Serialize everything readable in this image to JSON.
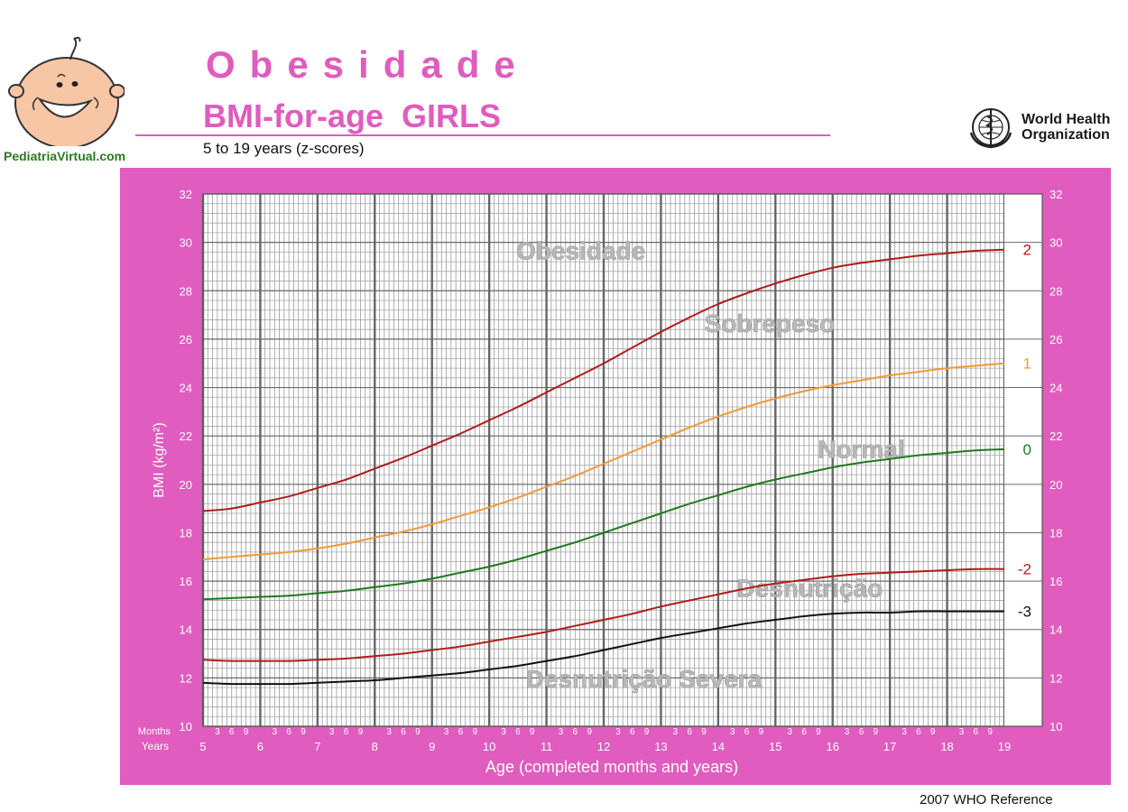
{
  "header": {
    "site": "PediatriaVirtual.com",
    "title": "Obesidade",
    "subtitle": "BMI-for-age  GIRLS",
    "age_range": "5 to 19 years (z-scores)",
    "organization_line1": "World Health",
    "organization_line2": "Organization"
  },
  "footer": {
    "reference": "2007 WHO Reference"
  },
  "colors": {
    "frame": "#e05cbe",
    "title": "#e05cbe",
    "sd2": "#b01c1c",
    "sd1": "#f09a3a",
    "median": "#1e7a1e",
    "sdneg2": "#b01c1c",
    "sdneg3": "#111111",
    "zone_label": "#b8b8b8"
  },
  "chart_data": {
    "type": "line",
    "xlabel": "Age (completed months and years)",
    "ylabel": "BMI (kg/m²)",
    "x_row_labels": {
      "months": "Months",
      "years": "Years"
    },
    "month_ticks": [
      "3",
      "6",
      "9"
    ],
    "xlim": [
      5,
      19
    ],
    "ylim": [
      10,
      32
    ],
    "x_ticks": [
      5,
      6,
      7,
      8,
      9,
      10,
      11,
      12,
      13,
      14,
      15,
      16,
      17,
      18,
      19
    ],
    "y_ticks": [
      10,
      12,
      14,
      16,
      18,
      20,
      22,
      24,
      26,
      28,
      30,
      32
    ],
    "grid": true,
    "x": [
      5,
      5.5,
      6,
      6.5,
      7,
      7.5,
      8,
      8.5,
      9,
      9.5,
      10,
      10.5,
      11,
      11.5,
      12,
      12.5,
      13,
      13.5,
      14,
      14.5,
      15,
      15.5,
      16,
      16.5,
      17,
      17.5,
      18,
      18.5,
      19
    ],
    "series": [
      {
        "name": "2",
        "key": "sd2",
        "values": [
          18.9,
          19.0,
          19.25,
          19.5,
          19.85,
          20.2,
          20.65,
          21.1,
          21.6,
          22.1,
          22.65,
          23.2,
          23.8,
          24.4,
          25.0,
          25.65,
          26.3,
          26.9,
          27.45,
          27.9,
          28.3,
          28.65,
          28.95,
          29.15,
          29.3,
          29.45,
          29.55,
          29.65,
          29.7
        ]
      },
      {
        "name": "1",
        "key": "sd1",
        "values": [
          16.9,
          17.0,
          17.1,
          17.2,
          17.35,
          17.55,
          17.8,
          18.05,
          18.35,
          18.7,
          19.05,
          19.45,
          19.9,
          20.35,
          20.85,
          21.35,
          21.85,
          22.35,
          22.8,
          23.2,
          23.55,
          23.85,
          24.1,
          24.3,
          24.5,
          24.65,
          24.8,
          24.9,
          25.0
        ]
      },
      {
        "name": "0",
        "key": "median",
        "values": [
          15.25,
          15.3,
          15.35,
          15.4,
          15.5,
          15.6,
          15.75,
          15.9,
          16.1,
          16.35,
          16.6,
          16.9,
          17.25,
          17.6,
          18.0,
          18.4,
          18.8,
          19.2,
          19.55,
          19.9,
          20.2,
          20.45,
          20.7,
          20.9,
          21.05,
          21.2,
          21.3,
          21.4,
          21.45
        ]
      },
      {
        "name": "-2",
        "key": "sdneg2",
        "values": [
          12.75,
          12.7,
          12.7,
          12.7,
          12.75,
          12.8,
          12.9,
          13.0,
          13.15,
          13.3,
          13.5,
          13.7,
          13.9,
          14.15,
          14.4,
          14.65,
          14.95,
          15.2,
          15.45,
          15.7,
          15.9,
          16.05,
          16.2,
          16.3,
          16.35,
          16.4,
          16.45,
          16.5,
          16.5
        ]
      },
      {
        "name": "-3",
        "key": "sdneg3",
        "values": [
          11.8,
          11.75,
          11.75,
          11.75,
          11.8,
          11.85,
          11.9,
          12.0,
          12.1,
          12.2,
          12.35,
          12.5,
          12.7,
          12.9,
          13.15,
          13.4,
          13.65,
          13.85,
          14.05,
          14.25,
          14.4,
          14.55,
          14.65,
          14.7,
          14.7,
          14.75,
          14.75,
          14.75,
          14.75
        ]
      }
    ],
    "zones": [
      {
        "label": "Obesidade",
        "x": 11.6,
        "y": 29.3
      },
      {
        "label": "Sobrepeso",
        "x": 14.9,
        "y": 26.3
      },
      {
        "label": "Normal",
        "x": 16.5,
        "y": 21.1
      },
      {
        "label": "Desnutrição",
        "x": 15.6,
        "y": 15.35
      },
      {
        "label": "Desnutrição Severa",
        "x": 12.7,
        "y": 11.6
      }
    ]
  }
}
